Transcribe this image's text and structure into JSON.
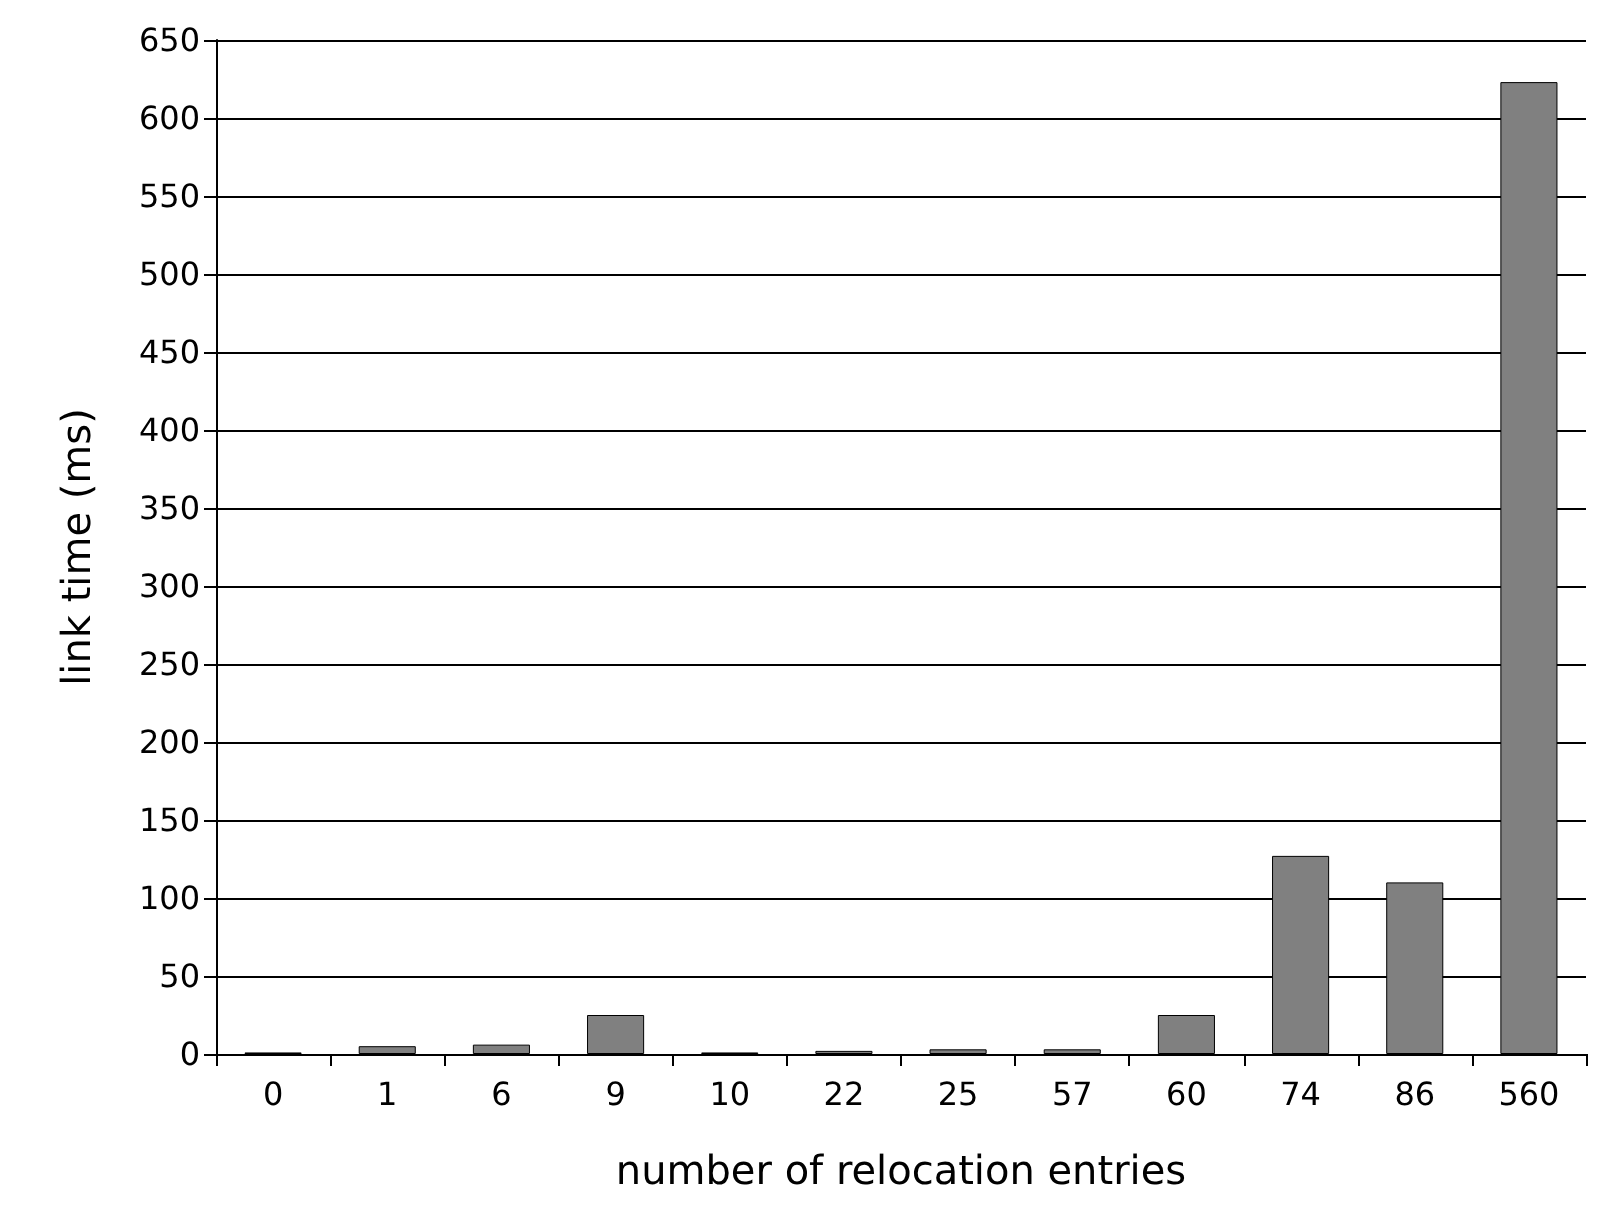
{
  "chart_data": {
    "type": "bar",
    "xlabel": "number of relocation entries",
    "ylabel": "link time (ms)",
    "categories": [
      "0",
      "1",
      "6",
      "9",
      "10",
      "22",
      "25",
      "57",
      "60",
      "74",
      "86",
      "560"
    ],
    "values": [
      1,
      5,
      6,
      25,
      1,
      2,
      3,
      3,
      25,
      127,
      110,
      623
    ],
    "color": "#808080",
    "ylim": [
      0,
      650
    ],
    "yticks": [
      0,
      50,
      100,
      150,
      200,
      250,
      300,
      350,
      400,
      450,
      500,
      550,
      600,
      650
    ],
    "grid": "y"
  }
}
